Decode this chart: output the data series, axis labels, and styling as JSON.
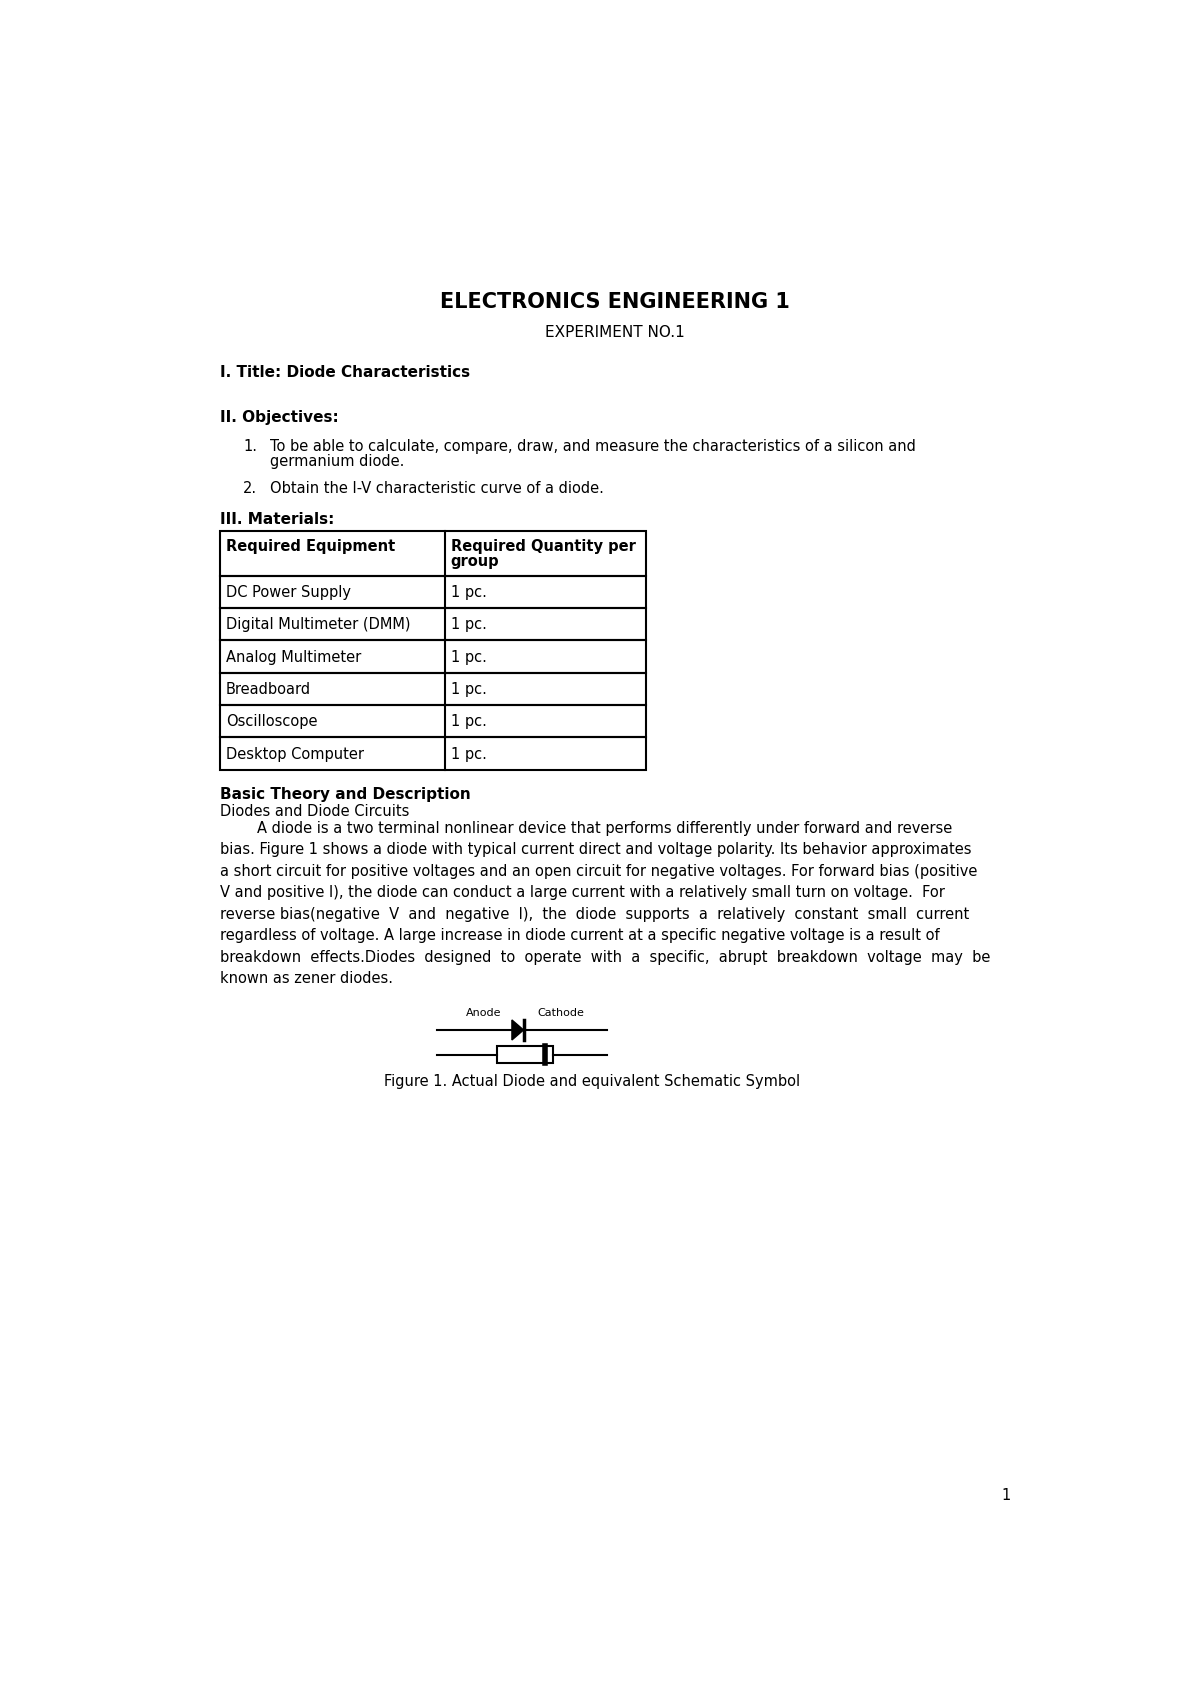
{
  "title": "ELECTRONICS ENGINEERING 1",
  "subtitle": "EXPERIMENT NO.1",
  "section1": "I. Title: Diode Characteristics",
  "section2_label": "II. Objectives:",
  "obj1_line1": "To be able to calculate, compare, draw, and measure the characteristics of a silicon and",
  "obj1_line2": "germanium diode.",
  "obj2": "Obtain the I-V characteristic curve of a diode.",
  "section3_label": "III. Materials:",
  "table_headers": [
    "Required Equipment",
    "Required Quantity per",
    "group"
  ],
  "table_rows": [
    [
      "DC Power Supply",
      "1 pc."
    ],
    [
      "Digital Multimeter (DMM)",
      "1 pc."
    ],
    [
      "Analog Multimeter",
      "1 pc."
    ],
    [
      "Breadboard",
      "1 pc."
    ],
    [
      "Oscilloscope",
      "1 pc."
    ],
    [
      "Desktop Computer",
      "1 pc."
    ]
  ],
  "section4_label": "Basic Theory and Description",
  "subsection": "Diodes and Diode Circuits",
  "para_lines": [
    "        A diode is a two terminal nonlinear device that performs differently under forward and reverse",
    "bias. Figure 1 shows a diode with typical current direct and voltage polarity. Its behavior approximates",
    "a short circuit for positive voltages and an open circuit for negative voltages. For forward bias (positive",
    "V and positive I), the diode can conduct a large current with a relatively small turn on voltage.  For",
    "reverse bias(negative  V  and  negative  I),  the  diode  supports  a  relatively  constant  small  current",
    "regardless of voltage. A large increase in diode current at a specific negative voltage is a result of",
    "breakdown  effects.Diodes  designed  to  operate  with  a  specific,  abrupt  breakdown  voltage  may  be",
    "known as zener diodes."
  ],
  "figure_caption": "Figure 1. Actual Diode and equivalent Schematic Symbol",
  "anode_label": "Anode",
  "cathode_label": "Cathode",
  "page_number": "1",
  "bg_color": "#ffffff",
  "text_color": "#000000"
}
